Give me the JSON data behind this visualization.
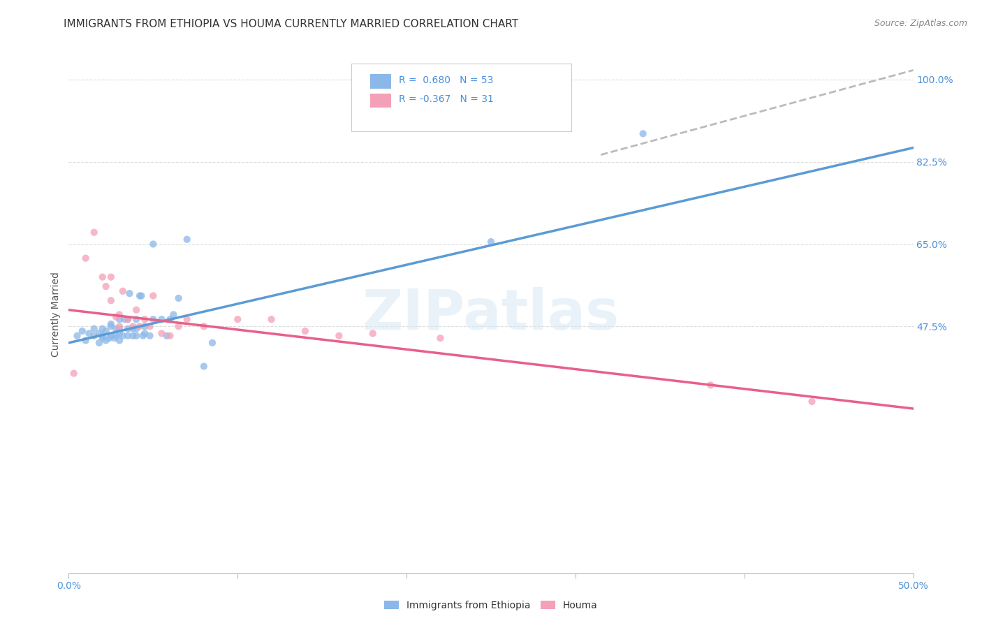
{
  "title": "IMMIGRANTS FROM ETHIOPIA VS HOUMA CURRENTLY MARRIED CORRELATION CHART",
  "source": "Source: ZipAtlas.com",
  "ylabel": "Currently Married",
  "xlim": [
    0.0,
    0.5
  ],
  "ylim": [
    -0.05,
    1.05
  ],
  "y_tick_positions": [
    0.475,
    0.65,
    0.825,
    1.0
  ],
  "y_tick_labels": [
    "47.5%",
    "65.0%",
    "82.5%",
    "100.0%"
  ],
  "x_tick_positions": [
    0.0,
    0.1,
    0.2,
    0.3,
    0.4,
    0.5
  ],
  "x_tick_labels": [
    "0.0%",
    "",
    "",
    "",
    "",
    "50.0%"
  ],
  "blue_color": "#8BB8E8",
  "pink_color": "#F4A0B8",
  "blue_line_color": "#5B9BD5",
  "pink_line_color": "#E8608A",
  "dashed_line_color": "#BBBBBB",
  "legend_blue_label_r": "R =  0.680",
  "legend_blue_label_n": "N = 53",
  "legend_pink_label_r": "R = -0.367",
  "legend_pink_label_n": "N = 31",
  "watermark": "ZIPatlas",
  "blue_scatter_x": [
    0.005,
    0.008,
    0.01,
    0.012,
    0.015,
    0.015,
    0.018,
    0.018,
    0.02,
    0.02,
    0.02,
    0.022,
    0.022,
    0.024,
    0.025,
    0.025,
    0.025,
    0.027,
    0.028,
    0.028,
    0.03,
    0.03,
    0.03,
    0.03,
    0.032,
    0.033,
    0.035,
    0.035,
    0.035,
    0.036,
    0.038,
    0.038,
    0.04,
    0.04,
    0.04,
    0.042,
    0.043,
    0.044,
    0.045,
    0.045,
    0.048,
    0.05,
    0.05,
    0.055,
    0.058,
    0.06,
    0.062,
    0.065,
    0.07,
    0.08,
    0.085,
    0.25,
    0.34
  ],
  "blue_scatter_y": [
    0.455,
    0.465,
    0.445,
    0.46,
    0.455,
    0.47,
    0.44,
    0.46,
    0.45,
    0.455,
    0.47,
    0.445,
    0.465,
    0.45,
    0.455,
    0.475,
    0.48,
    0.45,
    0.455,
    0.47,
    0.445,
    0.46,
    0.47,
    0.49,
    0.455,
    0.49,
    0.455,
    0.47,
    0.49,
    0.545,
    0.455,
    0.47,
    0.455,
    0.47,
    0.49,
    0.54,
    0.54,
    0.455,
    0.46,
    0.475,
    0.455,
    0.49,
    0.65,
    0.49,
    0.455,
    0.49,
    0.5,
    0.535,
    0.66,
    0.39,
    0.44,
    0.655,
    0.885
  ],
  "pink_scatter_x": [
    0.003,
    0.01,
    0.015,
    0.02,
    0.022,
    0.025,
    0.025,
    0.028,
    0.03,
    0.03,
    0.032,
    0.035,
    0.038,
    0.04,
    0.042,
    0.045,
    0.048,
    0.05,
    0.055,
    0.06,
    0.065,
    0.07,
    0.08,
    0.1,
    0.12,
    0.14,
    0.16,
    0.18,
    0.22,
    0.38,
    0.44
  ],
  "pink_scatter_y": [
    0.375,
    0.62,
    0.675,
    0.58,
    0.56,
    0.53,
    0.58,
    0.495,
    0.475,
    0.5,
    0.55,
    0.49,
    0.475,
    0.51,
    0.475,
    0.49,
    0.475,
    0.54,
    0.46,
    0.455,
    0.475,
    0.49,
    0.475,
    0.49,
    0.49,
    0.465,
    0.455,
    0.46,
    0.45,
    0.35,
    0.315
  ],
  "blue_trend_x": [
    0.0,
    0.5
  ],
  "blue_trend_y": [
    0.44,
    0.855
  ],
  "pink_trend_x": [
    0.0,
    0.5
  ],
  "pink_trend_y": [
    0.51,
    0.3
  ],
  "dashed_trend_x": [
    0.315,
    0.5
  ],
  "dashed_trend_y": [
    0.84,
    1.02
  ],
  "background_color": "#FFFFFF",
  "grid_color": "#DDDDDD",
  "title_fontsize": 11,
  "axis_label_fontsize": 10,
  "tick_fontsize": 10,
  "marker_size": 55,
  "marker_alpha": 0.75,
  "legend_fontsize": 10
}
